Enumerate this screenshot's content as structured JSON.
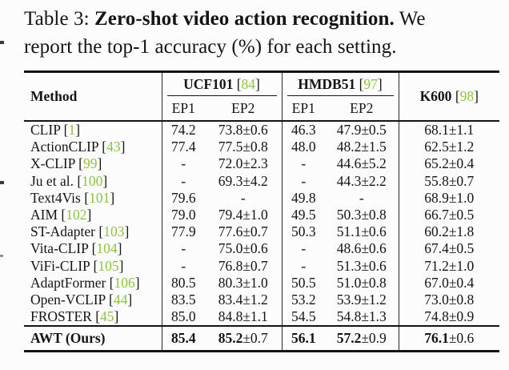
{
  "caption": {
    "label": "Table 3: ",
    "title": "Zero-shot video action recognition.",
    "rest_line1": " We",
    "line2": "report the top-1 accuracy (%) for each setting."
  },
  "colors": {
    "citation_green": "#8dc43f",
    "rule": "#141414"
  },
  "table": {
    "brackets": {
      "open": " [",
      "close": "]"
    },
    "header": {
      "method": "Method",
      "groups": [
        {
          "name": "UCF101",
          "cite": "84"
        },
        {
          "name": "HMDB51",
          "cite": "97"
        }
      ],
      "k600": {
        "name": "K600",
        "cite": "98"
      },
      "subcols": [
        "EP1",
        "EP2",
        "EP1",
        "EP2"
      ]
    },
    "rows": [
      {
        "method": "CLIP",
        "cite": "1",
        "cells": [
          "74.2",
          "73.8±0.6",
          "46.3",
          "47.9±0.5",
          "68.1±1.1"
        ]
      },
      {
        "method": "ActionCLIP",
        "cite": "43",
        "cells": [
          "77.4",
          "77.5±0.8",
          "48.0",
          "48.2±1.5",
          "62.5±1.2"
        ]
      },
      {
        "method": "X-CLIP",
        "cite": "99",
        "cells": [
          "-",
          "72.0±2.3",
          "-",
          "44.6±5.2",
          "65.2±0.4"
        ]
      },
      {
        "method": "Ju et al.",
        "cite": "100",
        "cells": [
          "-",
          "69.3±4.2",
          "-",
          "44.3±2.2",
          "55.8±0.7"
        ]
      },
      {
        "method": "Text4Vis",
        "cite": "101",
        "cells": [
          "79.6",
          "-",
          "49.8",
          "-",
          "68.9±1.0"
        ]
      },
      {
        "method": "AIM",
        "cite": "102",
        "cells": [
          "79.0",
          "79.4±1.0",
          "49.5",
          "50.3±0.8",
          "66.7±0.5"
        ]
      },
      {
        "method": "ST-Adapter",
        "cite": "103",
        "cells": [
          "77.9",
          "77.6±0.7",
          "50.3",
          "51.1±0.6",
          "60.2±1.8"
        ]
      },
      {
        "method": "Vita-CLIP",
        "cite": "104",
        "cells": [
          "-",
          "75.0±0.6",
          "-",
          "48.6±0.6",
          "67.4±0.5"
        ]
      },
      {
        "method": "ViFi-CLIP",
        "cite": "105",
        "cells": [
          "-",
          "76.8±0.7",
          "-",
          "51.3±0.6",
          "71.2±1.0"
        ]
      },
      {
        "method": "AdaptFormer",
        "cite": "106",
        "cells": [
          "80.5",
          "80.3±1.0",
          "50.5",
          "51.0±0.8",
          "67.0±0.4"
        ]
      },
      {
        "method": "Open-VCLIP",
        "cite": "44",
        "cells": [
          "83.5",
          "83.4±1.2",
          "53.2",
          "53.9±1.2",
          "73.0±0.8"
        ]
      },
      {
        "method": "FROSTER",
        "cite": "45",
        "cells": [
          "85.0",
          "84.8±1.1",
          "54.5",
          "54.8±1.3",
          "74.8±0.9"
        ]
      }
    ],
    "final_row": {
      "method": "AWT (Ours)",
      "cells": [
        {
          "bold": "85.4",
          "rest": ""
        },
        {
          "bold": "85.2",
          "rest": "±0.7"
        },
        {
          "bold": "56.1",
          "rest": ""
        },
        {
          "bold": "57.2",
          "rest": "±0.9"
        },
        {
          "bold": "76.1",
          "rest": "±0.6"
        }
      ]
    }
  }
}
